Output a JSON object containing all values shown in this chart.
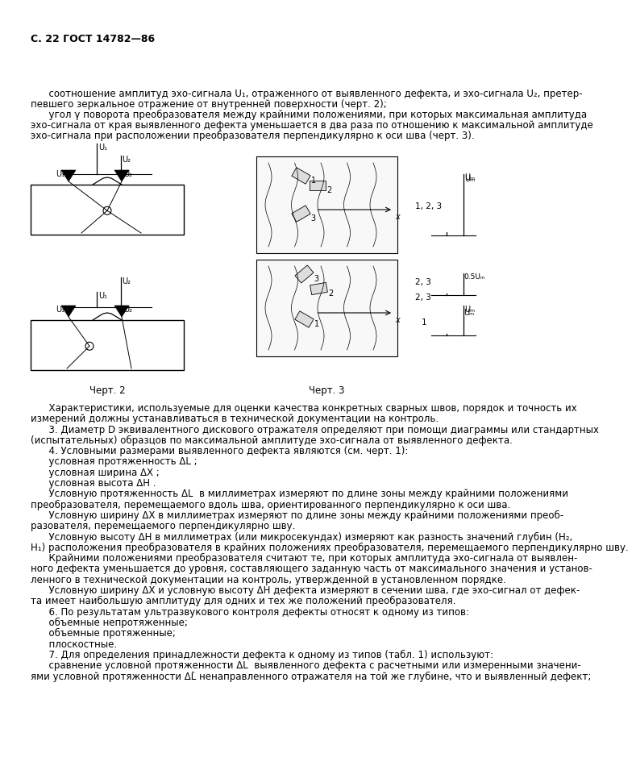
{
  "page_header": "С. 22 ГОСТ 14782—86",
  "background_color": "#ffffff",
  "text_color": "#000000",
  "chert2_label": "Черт. 2",
  "chert3_label": "Черт. 3",
  "top_texts": [
    "      соотношение амплитуд эхо-сигнала U₁, отраженного от выявленного дефекта, и эхо-сигнала U₂, претер-",
    "певшего зеркальное отражение от внутренней поверхности (черт. 2);",
    "      угол γ поворота преобразователя между крайними положениями, при которых максимальная амплитуда",
    "эхо-сигнала от края выявленного дефекта уменьшается в два раза по отношению к максимальной амплитуде",
    "эхо-сигнала при расположении преобразователя перпендикулярно к оси шва (черт. 3)."
  ],
  "body_paragraphs": [
    "      Характеристики, используемые для оценки качества конкретных сварных швов, порядок и точность их",
    "измерений должны устанавливаться в технической документации на контроль.",
    "      3. Диаметр D эквивалентного дискового отражателя определяют при помощи диаграммы или стандартных",
    "(испытательных) образцов по максимальной амплитуде эхо-сигнала от выявленного дефекта.",
    "      4. Условными размерами выявленного дефекта являются (см. черт. 1):",
    "      условная протяженность ΔL ;",
    "      условная ширина ΔX ;",
    "      условная высота ΔH .",
    "      Условную протяженность ΔL  в миллиметрах измеряют по длине зоны между крайними положениями",
    "преобразователя, перемещаемого вдоль шва, ориентированного перпендикулярно к оси шва.",
    "      Условную ширину ΔX в миллиметрах измеряют по длине зоны между крайними положениями преоб-",
    "разователя, перемещаемого перпендикулярно шву.",
    "      Условную высоту ΔH в миллиметрах (или микросекундах) измеряют как разность значений глубин (H₂,",
    "H₁) расположения преобразователя в крайних положениях преобразователя, перемещаемого перпендикулярно шву.",
    "      Крайними положениями преобразователя считают те, при которых амплитуда эхо-сигнала от выявлен-",
    "ного дефекта уменьшается до уровня, составляющего заданную часть от максимального значения и установ-",
    "ленного в технической документации на контроль, утвержденной в установленном порядке.",
    "      Условную ширину ΔX и условную высоту ΔH дефекта измеряют в сечении шва, где эхо-сигнал от дефек-",
    "та имеет наибольшую амплитуду для одних и тех же положений преобразователя.",
    "      6. По результатам ультразвукового контроля дефекты относят к одному из типов:",
    "      объемные непротяженные;",
    "      объемные протяженные;",
    "      плоскостные.",
    "      7. Для определения принадлежности дефекта к одному из типов (табл. 1) используют:",
    "      сравнение условной протяженности ΔL  выявленного дефекта с расчетными или измеренными значени-",
    "ями условной протяженности ΔL̀ ненаправленного отражателя на той же глубине, что и выявленный дефект;"
  ]
}
